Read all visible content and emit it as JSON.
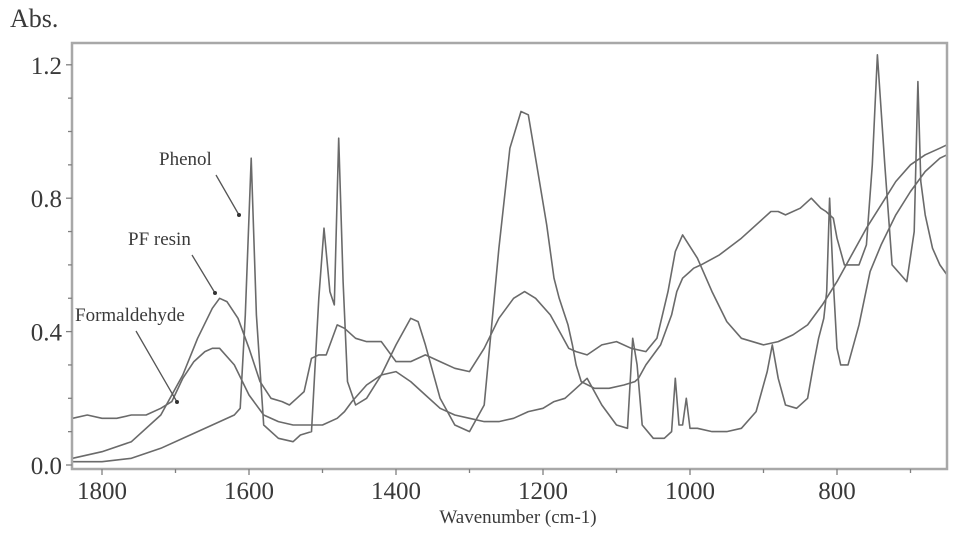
{
  "chart_data": {
    "type": "line",
    "title": "",
    "ylabel": "Abs.",
    "xlabel": "Wavenumber (cm-1)",
    "xlim": [
      1841,
      650
    ],
    "ylim": [
      -0.01,
      1.28
    ],
    "x_reversed": true,
    "grid": false,
    "x_ticks": [
      1800,
      1600,
      1400,
      1200,
      1000,
      800
    ],
    "x_tick_labels": [
      "1800",
      "1600",
      "1400",
      "1200",
      "1000",
      "800"
    ],
    "x_minor_ticks": [
      1700,
      1500,
      1300,
      1100,
      900,
      700
    ],
    "y_ticks": [
      0.0,
      0.4,
      0.8,
      1.2
    ],
    "y_tick_labels": [
      "0.0",
      "0.4",
      "0.8",
      "1.2"
    ],
    "y_minor_ticks": [
      0.1,
      0.2,
      0.3,
      0.5,
      0.6,
      0.7,
      0.9,
      1.0,
      1.1
    ],
    "annotations": [
      {
        "text": "Phenol",
        "series": "Phenol"
      },
      {
        "text": "PF resin",
        "series": "PF resin"
      },
      {
        "text": "Formaldehyde",
        "series": "Formaldehyde"
      }
    ],
    "series": [
      {
        "name": "Phenol",
        "x": [
          1840,
          1800,
          1760,
          1720,
          1680,
          1650,
          1620,
          1612,
          1605,
          1597,
          1590,
          1580,
          1560,
          1540,
          1530,
          1515,
          1505,
          1498,
          1490,
          1484,
          1478,
          1472,
          1466,
          1455,
          1440,
          1420,
          1400,
          1380,
          1370,
          1360,
          1340,
          1320,
          1300,
          1280,
          1260,
          1245,
          1230,
          1220,
          1210,
          1195,
          1185,
          1178,
          1172,
          1166,
          1160,
          1155,
          1148,
          1130,
          1110,
          1090,
          1075,
          1070,
          1060,
          1040,
          1025,
          1018,
          1010,
          1000,
          995,
          985,
          960,
          930,
          900,
          890,
          880,
          870,
          850,
          835,
          822,
          815,
          810,
          805,
          800,
          790,
          770,
          760,
          752,
          745,
          735,
          725,
          705,
          695,
          690,
          686,
          680,
          670,
          660,
          650
        ],
        "y": [
          0.01,
          0.01,
          0.02,
          0.05,
          0.09,
          0.12,
          0.15,
          0.17,
          0.45,
          0.92,
          0.45,
          0.12,
          0.08,
          0.07,
          0.09,
          0.1,
          0.5,
          0.71,
          0.52,
          0.48,
          0.98,
          0.55,
          0.25,
          0.18,
          0.2,
          0.27,
          0.36,
          0.44,
          0.43,
          0.36,
          0.2,
          0.12,
          0.1,
          0.18,
          0.65,
          0.95,
          1.06,
          1.05,
          0.92,
          0.72,
          0.56,
          0.5,
          0.46,
          0.42,
          0.36,
          0.3,
          0.25,
          0.23,
          0.23,
          0.24,
          0.25,
          0.26,
          0.3,
          0.36,
          0.45,
          0.52,
          0.56,
          0.58,
          0.59,
          0.6,
          0.63,
          0.68,
          0.74,
          0.76,
          0.76,
          0.75,
          0.77,
          0.8,
          0.77,
          0.76,
          0.75,
          0.74,
          0.68,
          0.6,
          0.6,
          0.66,
          0.9,
          1.23,
          0.9,
          0.6,
          0.55,
          0.7,
          1.15,
          0.85,
          0.75,
          0.65,
          0.6,
          0.57
        ]
      },
      {
        "name": "PF resin",
        "x": [
          1840,
          1800,
          1760,
          1720,
          1690,
          1670,
          1650,
          1640,
          1630,
          1615,
          1600,
          1585,
          1570,
          1555,
          1545,
          1535,
          1525,
          1515,
          1505,
          1495,
          1480,
          1470,
          1455,
          1440,
          1420,
          1400,
          1380,
          1360,
          1340,
          1320,
          1300,
          1280,
          1260,
          1240,
          1225,
          1210,
          1190,
          1175,
          1165,
          1155,
          1140,
          1120,
          1100,
          1080,
          1060,
          1045,
          1030,
          1020,
          1010,
          990,
          970,
          950,
          930,
          900,
          880,
          860,
          840,
          820,
          800,
          780,
          760,
          740,
          720,
          700,
          680,
          660,
          650
        ],
        "y": [
          0.02,
          0.04,
          0.07,
          0.15,
          0.27,
          0.38,
          0.47,
          0.5,
          0.49,
          0.44,
          0.35,
          0.25,
          0.2,
          0.19,
          0.18,
          0.2,
          0.22,
          0.32,
          0.33,
          0.33,
          0.42,
          0.41,
          0.38,
          0.37,
          0.37,
          0.31,
          0.31,
          0.33,
          0.31,
          0.29,
          0.28,
          0.35,
          0.44,
          0.5,
          0.52,
          0.5,
          0.45,
          0.39,
          0.35,
          0.34,
          0.33,
          0.36,
          0.37,
          0.35,
          0.34,
          0.38,
          0.52,
          0.64,
          0.69,
          0.62,
          0.52,
          0.43,
          0.38,
          0.36,
          0.37,
          0.39,
          0.42,
          0.48,
          0.55,
          0.63,
          0.71,
          0.78,
          0.85,
          0.9,
          0.93,
          0.95,
          0.96
        ]
      },
      {
        "name": "Formaldehyde",
        "x": [
          1840,
          1820,
          1800,
          1780,
          1760,
          1740,
          1720,
          1705,
          1690,
          1675,
          1660,
          1650,
          1640,
          1620,
          1600,
          1580,
          1560,
          1540,
          1520,
          1500,
          1480,
          1470,
          1460,
          1440,
          1420,
          1400,
          1380,
          1360,
          1340,
          1320,
          1300,
          1280,
          1260,
          1240,
          1220,
          1200,
          1185,
          1170,
          1155,
          1140,
          1120,
          1100,
          1085,
          1078,
          1072,
          1065,
          1050,
          1035,
          1025,
          1020,
          1015,
          1010,
          1005,
          1000,
          990,
          970,
          950,
          930,
          910,
          895,
          888,
          880,
          870,
          855,
          840,
          832,
          825,
          818,
          814,
          810,
          805,
          800,
          795,
          785,
          770,
          755,
          740,
          720,
          700,
          680,
          660,
          650
        ],
        "y": [
          0.14,
          0.15,
          0.14,
          0.14,
          0.15,
          0.15,
          0.17,
          0.19,
          0.26,
          0.31,
          0.34,
          0.35,
          0.35,
          0.3,
          0.21,
          0.15,
          0.13,
          0.12,
          0.12,
          0.12,
          0.14,
          0.16,
          0.19,
          0.24,
          0.27,
          0.28,
          0.25,
          0.21,
          0.17,
          0.15,
          0.14,
          0.13,
          0.13,
          0.14,
          0.16,
          0.17,
          0.19,
          0.2,
          0.23,
          0.26,
          0.18,
          0.12,
          0.11,
          0.38,
          0.3,
          0.12,
          0.08,
          0.08,
          0.1,
          0.26,
          0.12,
          0.12,
          0.2,
          0.11,
          0.11,
          0.1,
          0.1,
          0.11,
          0.16,
          0.28,
          0.36,
          0.26,
          0.18,
          0.17,
          0.2,
          0.3,
          0.38,
          0.44,
          0.52,
          0.8,
          0.55,
          0.35,
          0.3,
          0.3,
          0.42,
          0.58,
          0.66,
          0.75,
          0.82,
          0.88,
          0.92,
          0.93
        ]
      }
    ]
  },
  "axes": {
    "ylabel": "Abs.",
    "xlabel": "Wavenumber (cm-1)"
  },
  "annotations": {
    "phenol": "Phenol",
    "pf_resin": "PF resin",
    "formaldehyde": "Formaldehyde"
  },
  "style": {
    "curve_color": "#6a6a6a",
    "frame_color": "#a8a8a8",
    "text_color": "#3a3a3a"
  }
}
